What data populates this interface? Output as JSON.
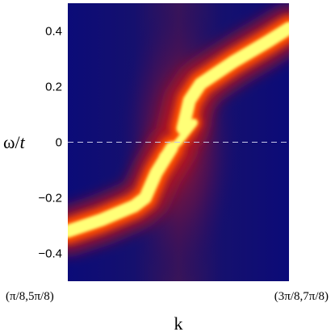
{
  "chart_data": {
    "type": "heatmap",
    "title": "",
    "xlabel": "k",
    "ylabel_main": "ω/",
    "ylabel_italic": "t",
    "ylim": [
      -0.5,
      0.5
    ],
    "y_ticks": [
      {
        "value": 0.4,
        "label": "0.4"
      },
      {
        "value": 0.2,
        "label": "0.2"
      },
      {
        "value": 0.0,
        "label": "0"
      },
      {
        "value": -0.2,
        "label": "−0.2"
      },
      {
        "value": -0.4,
        "label": "−0.4"
      }
    ],
    "x_tick_labels": [
      "(π/8,5π/8)",
      "(3π/8,7π/8)"
    ],
    "reference_line": {
      "y": 0.0,
      "style": "dashed"
    },
    "colormap": [
      "#0a0a6e",
      "#b4141e",
      "#ff5000",
      "#ffff78"
    ],
    "dispersion_branches": [
      {
        "name": "lower",
        "points": [
          [
            0.0,
            -0.32
          ],
          [
            0.15,
            -0.28
          ],
          [
            0.3,
            -0.23
          ],
          [
            0.35,
            -0.2
          ],
          [
            0.4,
            -0.11
          ],
          [
            0.47,
            -0.02
          ]
        ]
      },
      {
        "name": "central",
        "points": [
          [
            0.43,
            -0.05
          ],
          [
            0.5,
            0.0
          ],
          [
            0.57,
            0.07
          ]
        ]
      },
      {
        "name": "upper",
        "points": [
          [
            0.52,
            0.05
          ],
          [
            0.55,
            0.15
          ],
          [
            0.6,
            0.21
          ],
          [
            0.75,
            0.29
          ],
          [
            0.9,
            0.36
          ],
          [
            1.0,
            0.41
          ]
        ]
      }
    ]
  }
}
